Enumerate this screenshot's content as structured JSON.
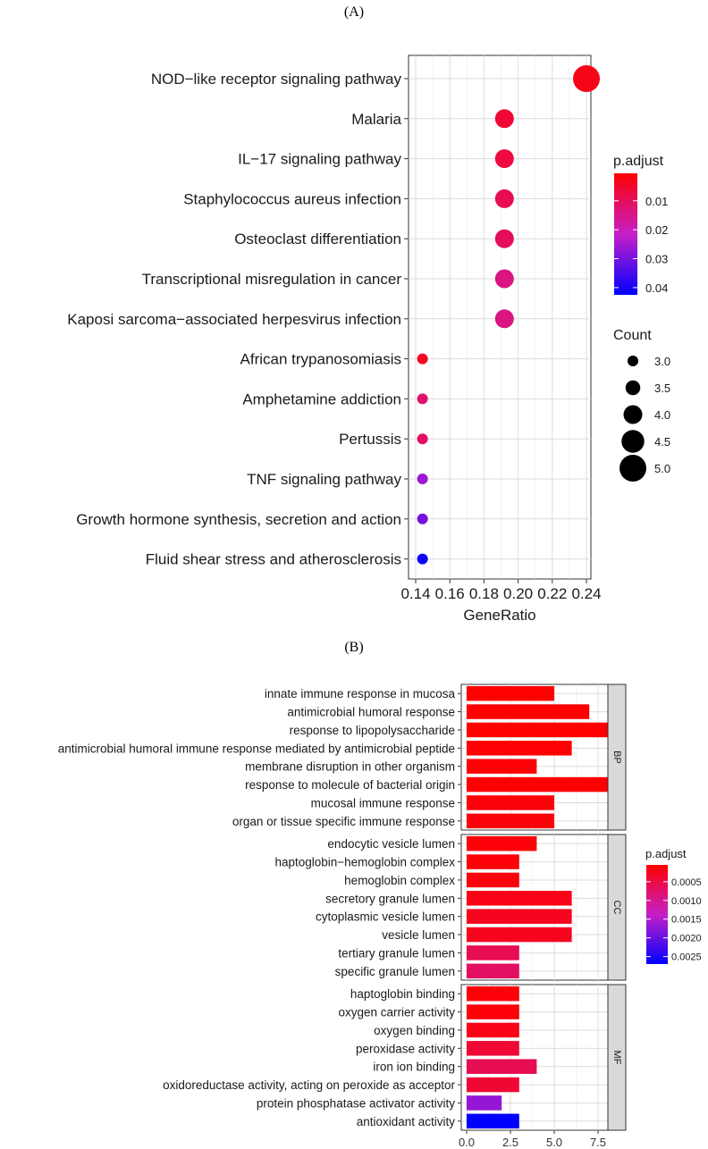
{
  "panel_a_label": "(A)",
  "panel_b_label": "(B)",
  "chart_data": [
    {
      "type": "scatter",
      "xlabel": "GeneRatio",
      "xlim": [
        0.14,
        0.24
      ],
      "xticks": [
        "0.14",
        "0.16",
        "0.18",
        "0.20",
        "0.22",
        "0.24"
      ],
      "grid": true,
      "categories": [
        "NOD−like receptor signaling pathway",
        "Malaria",
        "IL−17 signaling pathway",
        "Staphylococcus aureus infection",
        "Osteoclast differentiation",
        "Transcriptional misregulation in cancer",
        "Kaposi sarcoma−associated herpesvirus infection",
        "African trypanosomiasis",
        "Amphetamine addiction",
        "Pertussis",
        "TNF signaling pathway",
        "Growth hormone synthesis, secretion and action",
        "Fluid shear stress and atherosclerosis"
      ],
      "gene_ratio": [
        0.24,
        0.192,
        0.192,
        0.192,
        0.192,
        0.192,
        0.192,
        0.144,
        0.144,
        0.144,
        0.144,
        0.144,
        0.144
      ],
      "count": [
        5,
        4,
        4,
        4,
        4,
        4,
        4,
        3,
        3,
        3,
        3,
        3,
        3
      ],
      "p_adjust": [
        0.003,
        0.006,
        0.007,
        0.009,
        0.01,
        0.014,
        0.014,
        0.004,
        0.012,
        0.011,
        0.026,
        0.03,
        0.041
      ],
      "color_legend": {
        "title": "p.adjust",
        "min": 0.0005,
        "max": 0.0425,
        "ticks": [
          "0.01",
          "0.02",
          "0.03",
          "0.04"
        ],
        "tick_values": [
          0.01,
          0.02,
          0.03,
          0.04
        ],
        "low_color": "#ff0000",
        "mid_color": "#c61fc8",
        "high_color": "#0000ff"
      },
      "size_legend": {
        "title": "Count",
        "ticks": [
          "3.0",
          "3.5",
          "4.0",
          "4.5",
          "5.0"
        ],
        "values": [
          3.0,
          3.5,
          4.0,
          4.5,
          5.0
        ]
      }
    },
    {
      "type": "bar",
      "orientation": "horizontal",
      "xlim": [
        0,
        9.4
      ],
      "xticks": [
        "0.0",
        "2.5",
        "5.0",
        "7.5"
      ],
      "tick_values": [
        0,
        2.5,
        5.0,
        7.5
      ],
      "grid": true,
      "facets": [
        {
          "name": "BP",
          "categories": [
            "innate immune response in mucosa",
            "antimicrobial humoral response",
            "response to lipopolysaccharide",
            "antimicrobial humoral immune response mediated by antimicrobial peptide",
            "membrane disruption in other organism",
            "response to molecule of bacterial origin",
            "mucosal immune response",
            "organ or tissue specific immune response"
          ],
          "values": [
            5,
            7,
            9,
            6,
            4,
            9,
            5,
            5
          ],
          "p_adjust": [
            5e-05,
            6e-05,
            6e-05,
            8e-05,
            0.0001,
            6e-05,
            0.00012,
            0.00012
          ]
        },
        {
          "name": "CC",
          "categories": [
            "endocytic vesicle lumen",
            "haptoglobin−hemoglobin complex",
            "hemoglobin complex",
            "secretory granule lumen",
            "cytoplasmic vesicle lumen",
            "vesicle lumen",
            "tertiary granule lumen",
            "specific granule lumen"
          ],
          "values": [
            4,
            3,
            3,
            6,
            6,
            6,
            3,
            3
          ],
          "p_adjust": [
            0.0001,
            0.0001,
            0.00015,
            0.0002,
            0.00025,
            0.00025,
            0.0006,
            0.0007
          ]
        },
        {
          "name": "MF",
          "categories": [
            "haptoglobin binding",
            "oxygen carrier activity",
            "oxygen binding",
            "peroxidase activity",
            "iron ion binding",
            "oxidoreductase activity, acting on peroxide as acceptor",
            "protein phosphatase activator activity",
            "antioxidant activity"
          ],
          "values": [
            3,
            3,
            3,
            3,
            4,
            3,
            2,
            3
          ],
          "p_adjust": [
            0.0001,
            0.0001,
            0.0002,
            0.0004,
            0.0006,
            0.0004,
            0.0017,
            0.0027
          ]
        }
      ],
      "color_legend": {
        "title": "p.adjust",
        "min": 5e-05,
        "max": 0.0027,
        "ticks": [
          "0.0005",
          "0.0010",
          "0.0015",
          "0.0020",
          "0.0025"
        ],
        "tick_values": [
          0.0005,
          0.001,
          0.0015,
          0.002,
          0.0025
        ],
        "low_color": "#ff0000",
        "mid_color": "#c61fc8",
        "high_color": "#0000ff"
      }
    }
  ]
}
